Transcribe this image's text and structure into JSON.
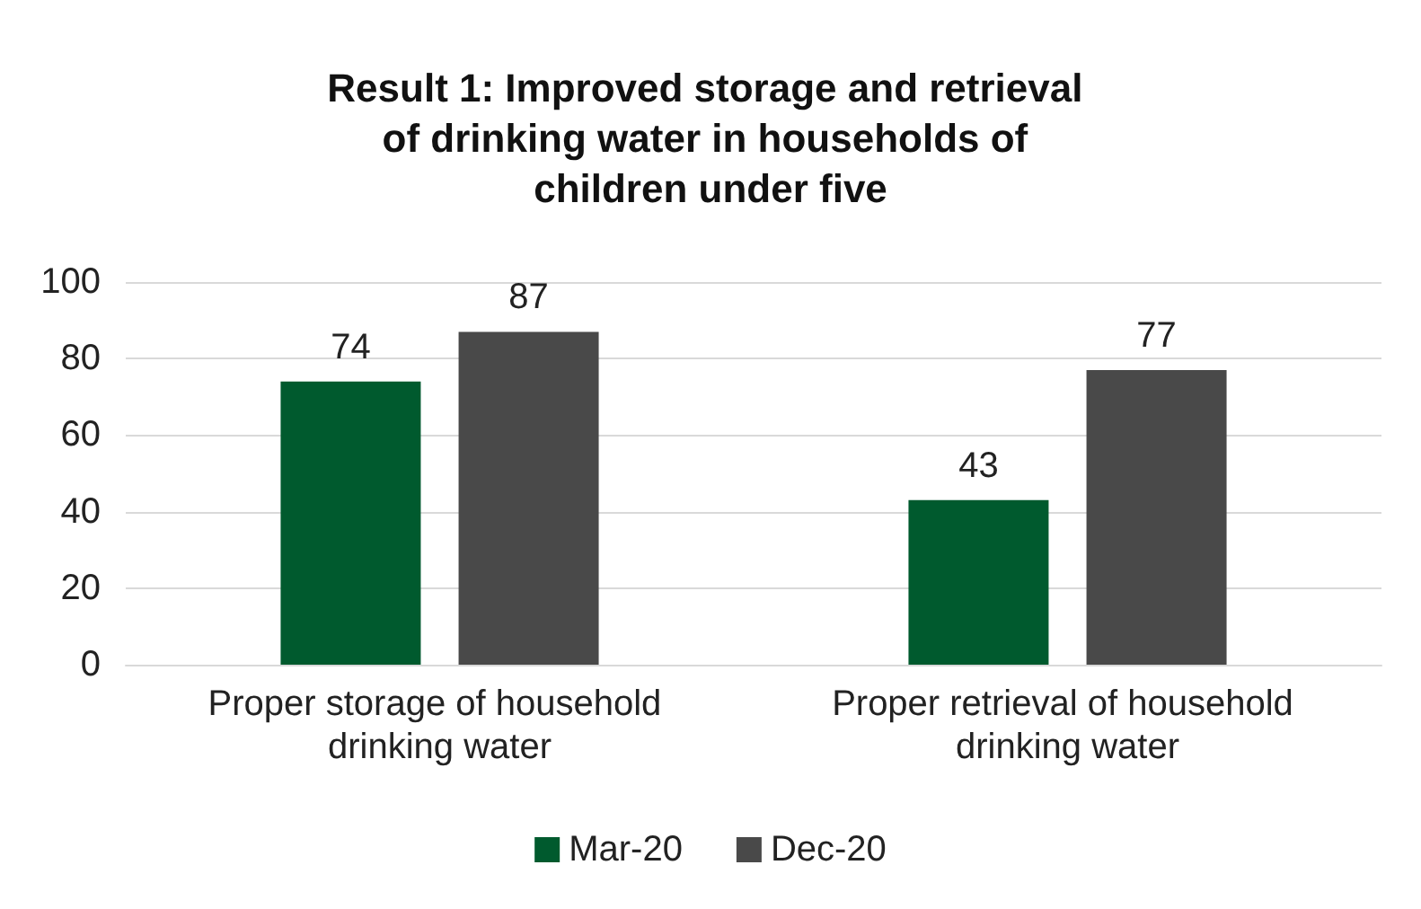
{
  "chart_data": {
    "type": "bar",
    "title": "Result 1: Improved storage and retrieval of drinking water in households of children under five",
    "categories": [
      "Proper storage of household drinking water",
      "Proper retrieval of household drinking water"
    ],
    "series": [
      {
        "name": "Mar-20",
        "color": "#005a2e",
        "values": [
          74,
          43
        ]
      },
      {
        "name": "Dec-20",
        "color": "#494949",
        "values": [
          87,
          77
        ]
      }
    ],
    "ylim": [
      0,
      100
    ],
    "yticks": [
      0,
      20,
      40,
      60,
      80,
      100
    ],
    "grid": "y",
    "legend": "bottom",
    "data_labels": true
  }
}
